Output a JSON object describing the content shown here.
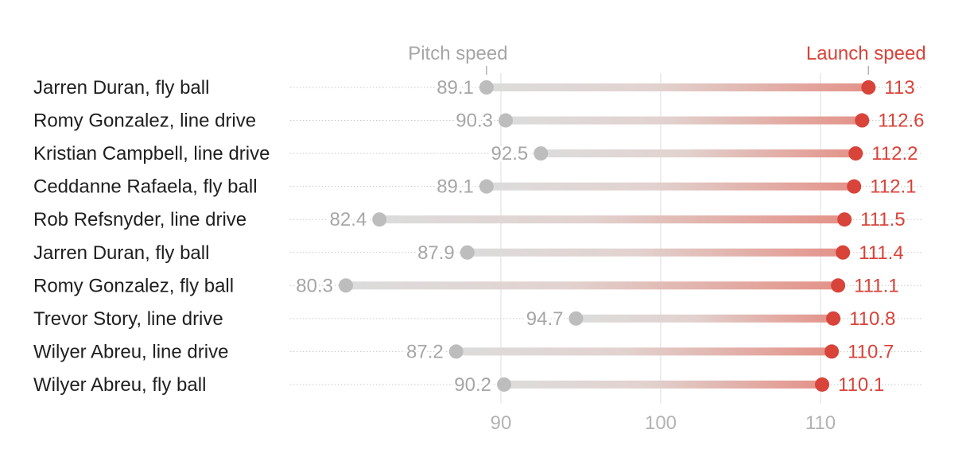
{
  "chart_data": {
    "type": "dumbbell",
    "series": [
      {
        "name": "Pitch speed",
        "color": "#bdbdbd",
        "text_color": "#a6a6a6"
      },
      {
        "name": "Launch speed",
        "color": "#d8433a",
        "text_color": "#d8433a"
      }
    ],
    "legend": {
      "pitch_label": "Pitch speed",
      "launch_label": "Launch speed"
    },
    "x_axis": {
      "range": [
        80.3,
        113
      ],
      "ticks": [
        90,
        100,
        110
      ]
    },
    "rows": [
      {
        "label": "Jarren Duran, fly ball",
        "pitch": 89.1,
        "launch": 113
      },
      {
        "label": "Romy Gonzalez, line drive",
        "pitch": 90.3,
        "launch": 112.6
      },
      {
        "label": "Kristian Campbell, line drive",
        "pitch": 92.5,
        "launch": 112.2
      },
      {
        "label": "Ceddanne Rafaela, fly ball",
        "pitch": 89.1,
        "launch": 112.1
      },
      {
        "label": "Rob Refsnyder, line drive",
        "pitch": 82.4,
        "launch": 111.5
      },
      {
        "label": "Jarren Duran, fly ball",
        "pitch": 87.9,
        "launch": 111.4
      },
      {
        "label": "Romy Gonzalez, fly ball",
        "pitch": 80.3,
        "launch": 111.1
      },
      {
        "label": "Trevor Story, line drive",
        "pitch": 94.7,
        "launch": 110.8
      },
      {
        "label": "Wilyer Abreu, line drive",
        "pitch": 87.2,
        "launch": 110.7
      },
      {
        "label": "Wilyer Abreu, fly ball",
        "pitch": 90.2,
        "launch": 110.1
      }
    ]
  }
}
